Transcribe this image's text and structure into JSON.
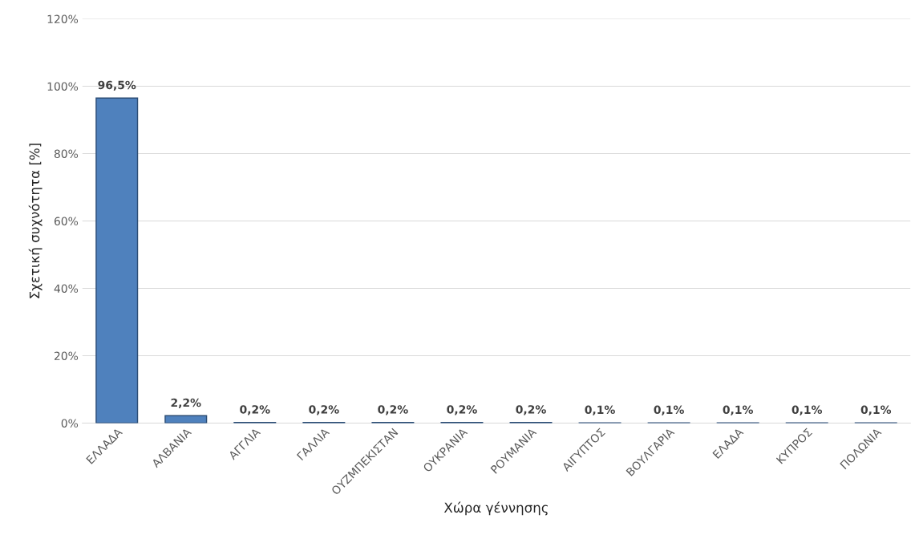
{
  "chart_data": {
    "type": "bar",
    "xlabel": "Χώρα γέννησης",
    "ylabel": "Σχετική συχνότητα [%]",
    "categories": [
      "ΕΛΛΑΔΑ",
      "ΑΛΒΑΝΙΑ",
      "ΑΓΓΛΙΑ",
      "ΓΑΛΛΙΑ",
      "ΟΥΖΜΠΕΚΙΣΤΑΝ",
      "ΟΥΚΡΑΝΙΑ",
      "ΡΟΥΜΑΝΙΑ",
      "ΑΙΓΥΠΤΟΣ",
      "ΒΟΥΛΓΑΡΙΑ",
      "ΕΛΑΔΑ",
      "ΚΥΠΡΟΣ",
      "ΠΟΛΩΝΙΑ"
    ],
    "values": [
      96.5,
      2.2,
      0.2,
      0.2,
      0.2,
      0.2,
      0.2,
      0.1,
      0.1,
      0.1,
      0.1,
      0.1
    ],
    "value_labels": [
      "96,5%",
      "2,2%",
      "0,2%",
      "0,2%",
      "0,2%",
      "0,2%",
      "0,2%",
      "0,1%",
      "0,1%",
      "0,1%",
      "0,1%",
      "0,1%"
    ],
    "color": "#4f81bd",
    "ylim": [
      0,
      120
    ],
    "yticks": [
      {
        "value": 0,
        "label": "0%"
      },
      {
        "value": 20,
        "label": "20%"
      },
      {
        "value": 40,
        "label": "40%"
      },
      {
        "value": 60,
        "label": "60%"
      },
      {
        "value": 80,
        "label": "80%"
      },
      {
        "value": 100,
        "label": "100%"
      },
      {
        "value": 120,
        "label": "120%"
      }
    ],
    "grid": "y",
    "legend": false
  }
}
